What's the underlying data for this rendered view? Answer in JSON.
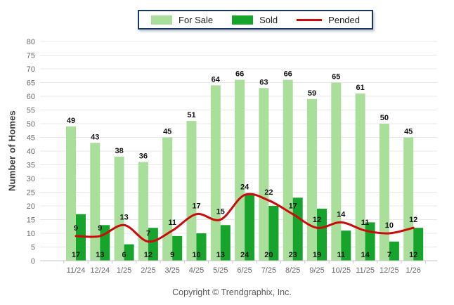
{
  "footer": {
    "copyright": "Copyright © Trendgraphix, Inc."
  },
  "chart_data": {
    "type": "bar",
    "title": "",
    "categories": [
      "11/24",
      "12/24",
      "1/25",
      "2/25",
      "3/25",
      "4/25",
      "5/25",
      "6/25",
      "7/25",
      "8/25",
      "9/25",
      "10/25",
      "11/25",
      "12/25",
      "1/26"
    ],
    "series": [
      {
        "name": "For Sale",
        "type": "bar",
        "color": "#A9DF9B",
        "values": [
          49,
          43,
          38,
          36,
          45,
          51,
          64,
          66,
          63,
          66,
          59,
          65,
          61,
          50,
          45
        ]
      },
      {
        "name": "Sold",
        "type": "bar",
        "color": "#17A42D",
        "values": [
          17,
          13,
          6,
          12,
          9,
          10,
          13,
          24,
          20,
          23,
          19,
          11,
          14,
          7,
          12
        ]
      },
      {
        "name": "Pended",
        "type": "line",
        "color": "#CC0A0A",
        "values": [
          9,
          9,
          13,
          7,
          11,
          17,
          15,
          24,
          22,
          17,
          12,
          14,
          11,
          10,
          12
        ]
      }
    ],
    "xlabel": "",
    "ylabel": "Number of Homes",
    "ylim": [
      0,
      80
    ],
    "ytick_step": 5,
    "grid": true,
    "legend_position": "top-center",
    "value_label_color": "#141414",
    "axis_text_color": "#6B6B6B",
    "legend_border_color": "#17375E"
  }
}
